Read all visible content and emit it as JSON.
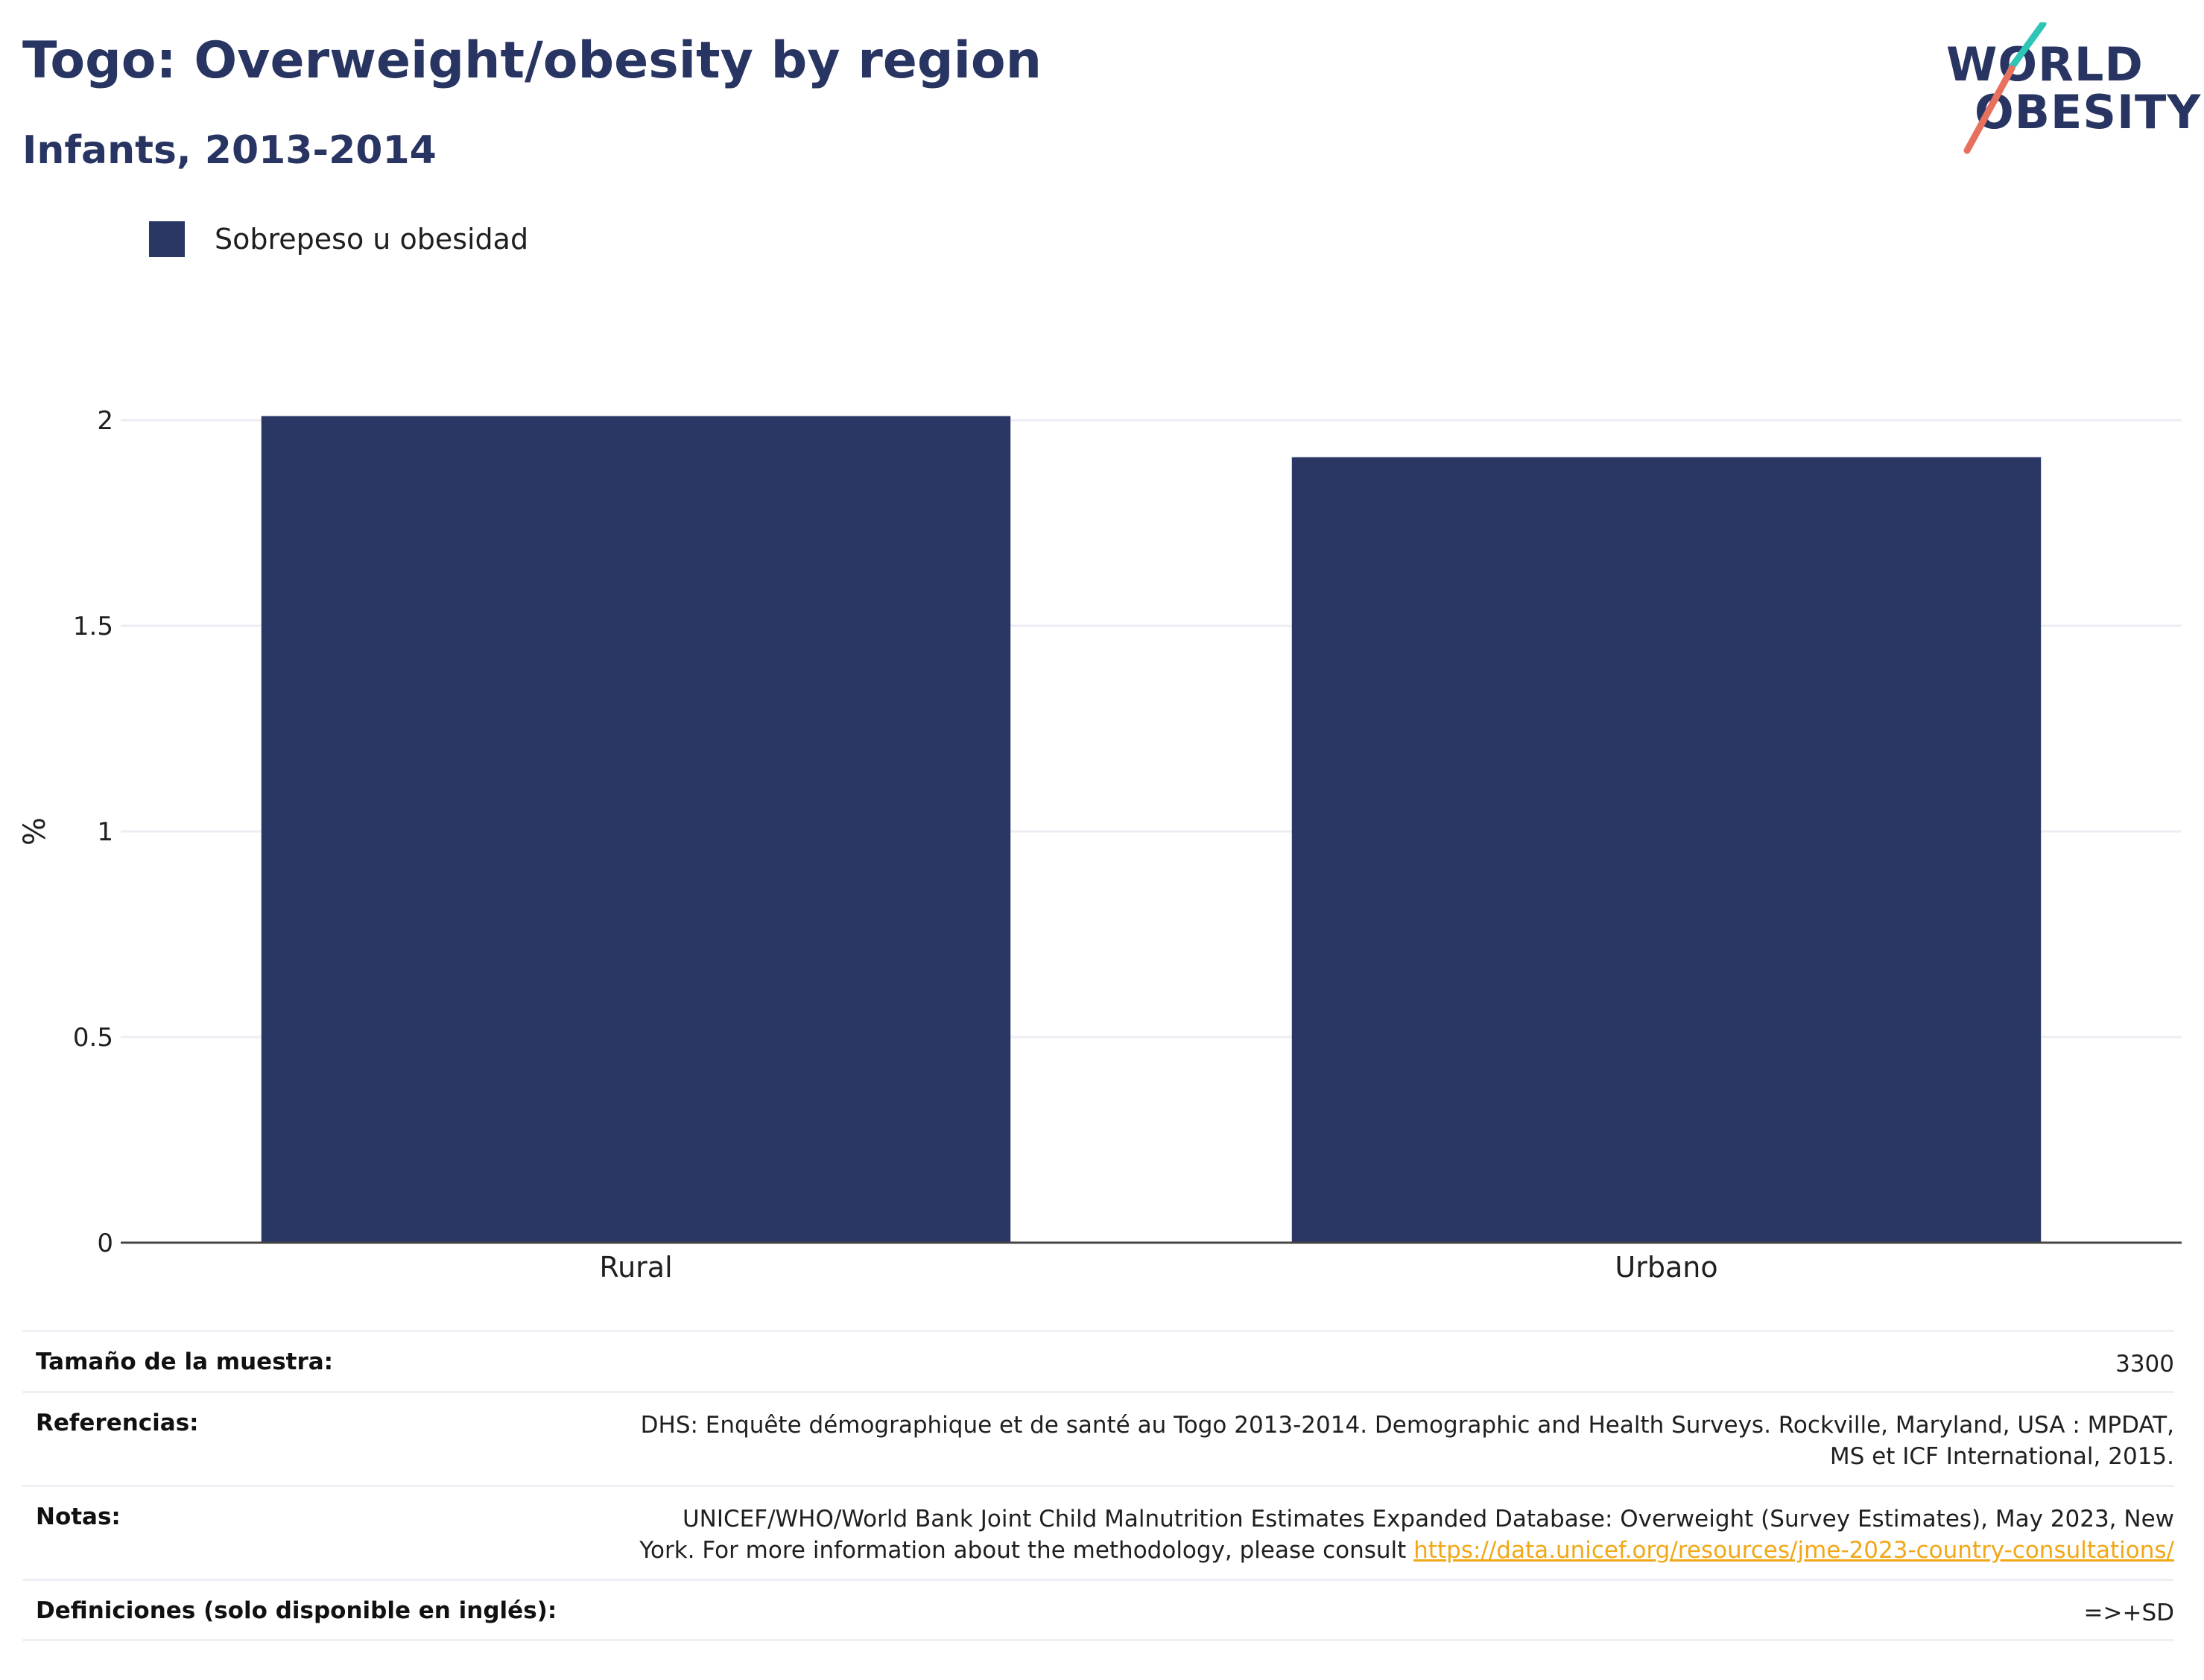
{
  "header": {
    "title": "Togo: Overweight/obesity by region",
    "subtitle": "Infants, 2013-2014"
  },
  "logo": {
    "line1": "WORLD",
    "line2": "OBESITY",
    "accent_colors": [
      "#2ec4b6",
      "#e8705f"
    ]
  },
  "legend": {
    "label": "Sobrepeso u obesidad",
    "color": "#2a3663"
  },
  "chart_data": {
    "type": "bar",
    "categories": [
      "Rural",
      "Urbano"
    ],
    "series": [
      {
        "name": "Sobrepeso u obesidad",
        "values": [
          2.01,
          1.91
        ]
      }
    ],
    "ylabel": "%",
    "ylim": [
      0,
      2.0
    ],
    "yticks": [
      0,
      0.5,
      1,
      1.5,
      2
    ],
    "ytick_labels": [
      "0",
      "0.5",
      "1",
      "1.5",
      "2"
    ],
    "grid": true,
    "bar_color": "#2a3663"
  },
  "info": {
    "sample_size": {
      "label": "Tamaño de la muestra:",
      "value": "3300"
    },
    "references": {
      "label": "Referencias:",
      "line1": "DHS: Enquête démographique et de santé au Togo 2013-2014. Demographic and Health Surveys. Rockville, Maryland, USA : MPDAT,",
      "line2": "MS et ICF International, 2015."
    },
    "notes": {
      "label": "Notas:",
      "line1": "UNICEF/WHO/World Bank Joint Child Malnutrition Estimates Expanded Database: Overweight (Survey Estimates), May 2023, New",
      "line2_text": "York. For more information about the methodology, please consult ",
      "link": "https://data.unicef.org/resources/jme-2023-country-consultations/"
    },
    "definitions": {
      "label": "Definiciones (solo disponible en inglés):",
      "value": "=>+SD"
    }
  }
}
